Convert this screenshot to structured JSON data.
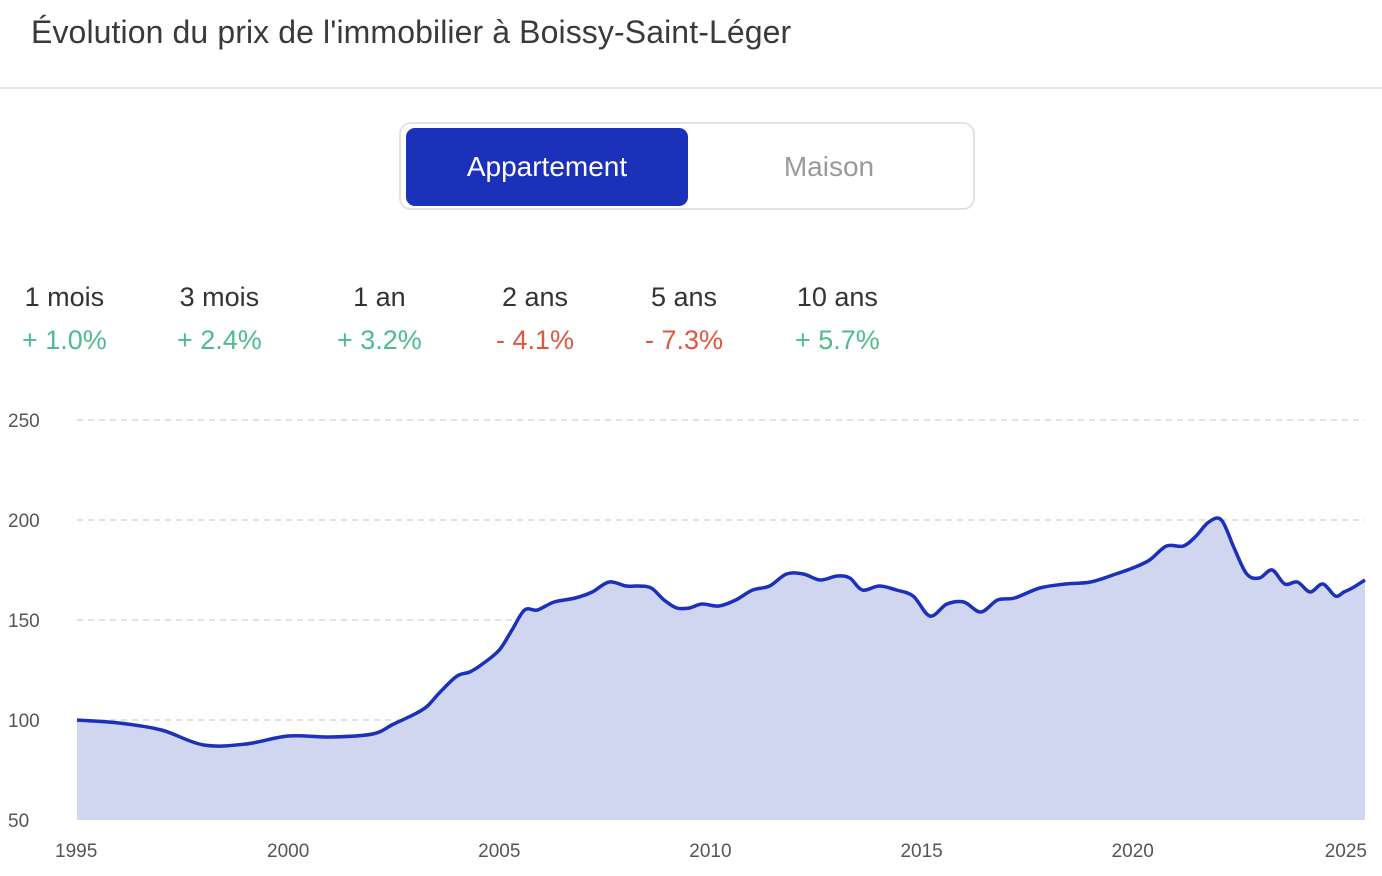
{
  "header": {
    "title": "Évolution du prix de l'immobilier à Boissy-Saint-Léger"
  },
  "toggle": {
    "options": [
      "Appartement",
      "Maison"
    ],
    "selected": "Appartement"
  },
  "periods": [
    {
      "label": "1 mois",
      "value": "+ 1.0%",
      "trend": "up"
    },
    {
      "label": "3 mois",
      "value": "+ 2.4%",
      "trend": "up"
    },
    {
      "label": "1 an",
      "value": "+ 3.2%",
      "trend": "up"
    },
    {
      "label": "2 ans",
      "value": "- 4.1%",
      "trend": "down"
    },
    {
      "label": "5 ans",
      "value": "- 7.3%",
      "trend": "down"
    },
    {
      "label": "10 ans",
      "value": "+ 5.7%",
      "trend": "up"
    }
  ],
  "colors": {
    "accent": "#1c31b9",
    "area_fill": "#d0d5f0",
    "positive": "#4cbc8f",
    "negative": "#e2553f"
  },
  "chart_data": {
    "type": "area",
    "xlabel": "",
    "ylabel": "",
    "xlim": [
      1995,
      2025.5
    ],
    "ylim": [
      50,
      250
    ],
    "x_ticks": [
      1995,
      2000,
      2005,
      2010,
      2015,
      2020,
      2025
    ],
    "y_ticks": [
      50,
      100,
      150,
      200,
      250
    ],
    "grid": "horizontal-dashed",
    "series": [
      {
        "x": [
          1995,
          1996,
          1997,
          1998,
          1999,
          2000,
          2001,
          2002,
          2002.5,
          2003,
          2003.3,
          2003.6,
          2004,
          2004.3,
          2004.6,
          2005,
          2005.3,
          2005.6,
          2005.9,
          2006.3,
          2006.8,
          2007.2,
          2007.6,
          2008,
          2008.3,
          2008.6,
          2008.9,
          2009.2,
          2009.5,
          2009.8,
          2010.2,
          2010.6,
          2011,
          2011.4,
          2011.8,
          2012.2,
          2012.6,
          2013,
          2013.3,
          2013.6,
          2014,
          2014.4,
          2014.8,
          2015.2,
          2015.6,
          2016,
          2016.4,
          2016.8,
          2017.2,
          2017.8,
          2018.4,
          2019,
          2019.6,
          2020,
          2020.4,
          2020.8,
          2021.2,
          2021.5,
          2021.8,
          2022.1,
          2022.4,
          2022.7,
          2023,
          2023.3,
          2023.6,
          2023.9,
          2024.2,
          2024.5,
          2024.8,
          2025,
          2025.2,
          2025.5
        ],
        "y": [
          100,
          98.5,
          95,
          87.5,
          88,
          92,
          91.5,
          93,
          98,
          103,
          107,
          114,
          122,
          124,
          128,
          135,
          145,
          155,
          155,
          159,
          161,
          164,
          169,
          167,
          167,
          166,
          160,
          156,
          156,
          158,
          157,
          160,
          165,
          167,
          173,
          173,
          170,
          172,
          171,
          165,
          167,
          165,
          162,
          152,
          158,
          159,
          154,
          160,
          161,
          166,
          168,
          169,
          173,
          176,
          180,
          187,
          187,
          192,
          199,
          200,
          186,
          173,
          171,
          175,
          168,
          169,
          164,
          168,
          162,
          164,
          166,
          170
        ]
      }
    ]
  }
}
